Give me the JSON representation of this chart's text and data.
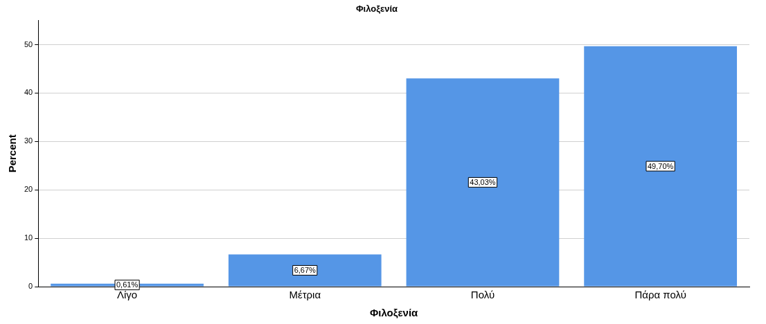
{
  "chart_data": {
    "type": "bar",
    "title": "Φιλοξενία",
    "xlabel": "Φιλοξενία",
    "ylabel": "Percent",
    "categories": [
      "Λίγο",
      "Μέτρια",
      "Πολύ",
      "Πάρα πολύ"
    ],
    "values": [
      0.61,
      6.67,
      43.03,
      49.7
    ],
    "value_labels": [
      "0,61%",
      "6,67%",
      "43,03%",
      "49,70%"
    ],
    "color": "#5596e6",
    "ylim": [
      0,
      55
    ],
    "yticks": [
      0,
      10,
      20,
      30,
      40,
      50
    ],
    "grid": "y",
    "legend": false
  }
}
